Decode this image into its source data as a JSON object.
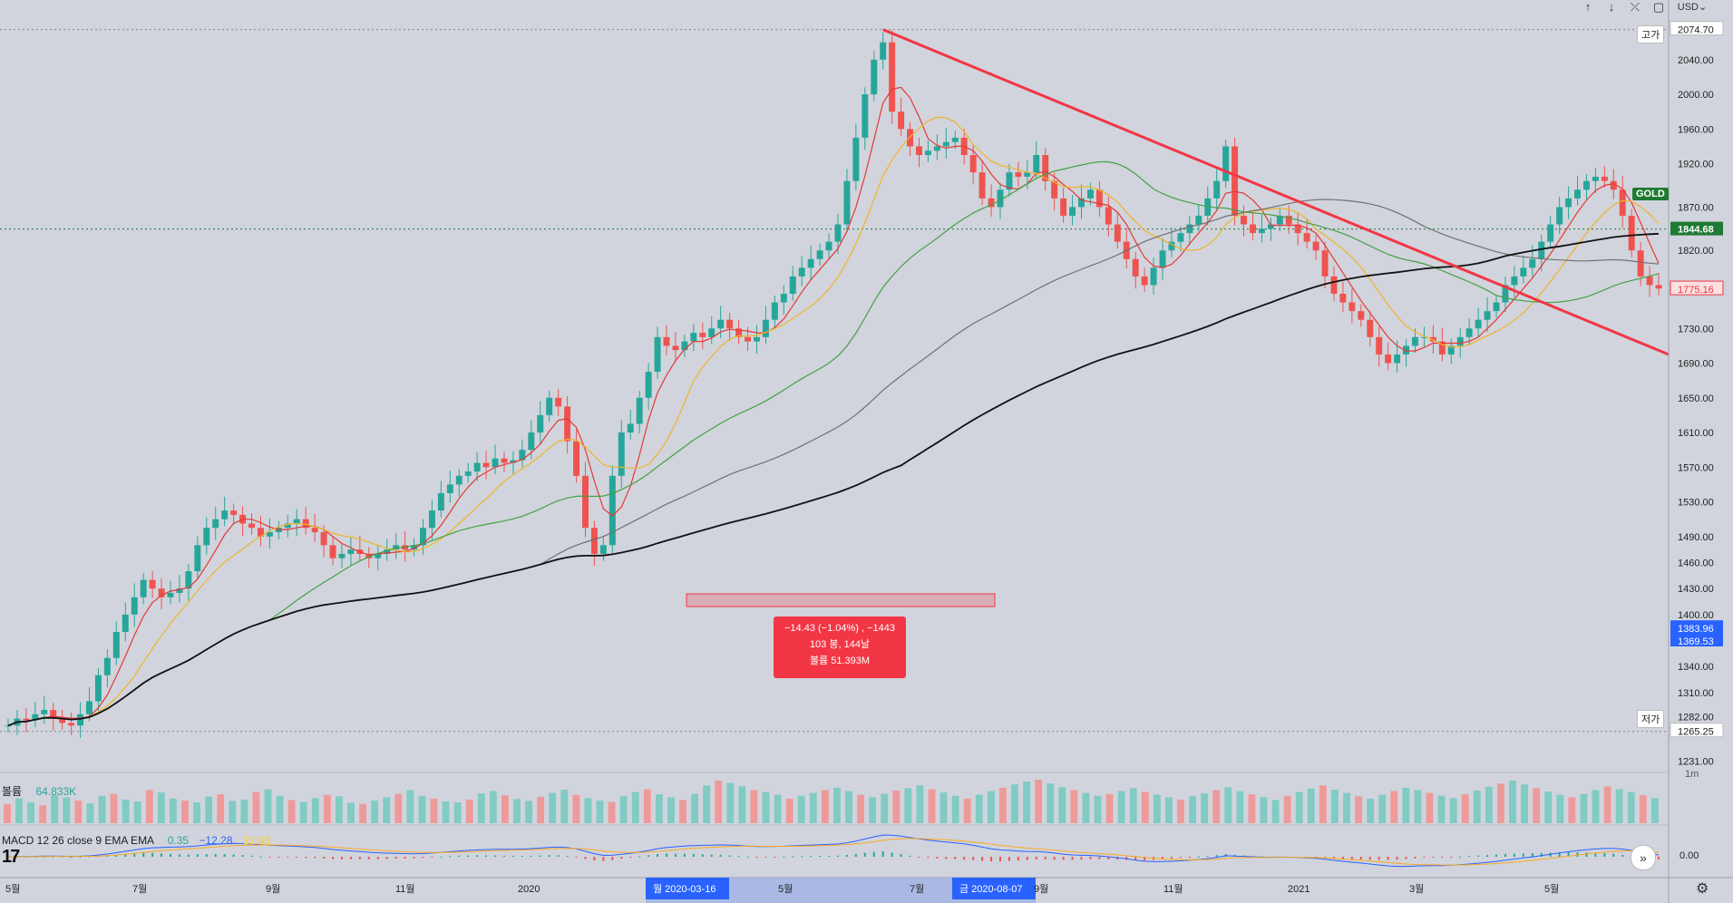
{
  "chart_data": {
    "type": "candlestick",
    "symbol": "GOLD",
    "currency": "USD",
    "x_ticks": [
      "5월",
      "7월",
      "9월",
      "11월",
      "2020",
      "5월",
      "7월",
      "9월",
      "11월",
      "2021",
      "3월",
      "5월"
    ],
    "range_highlight": {
      "start": "월 2020-03-16",
      "end": "금 2020-08-07"
    },
    "y_ticks": [
      2074.7,
      2040.0,
      2000.0,
      1960.0,
      1920.0,
      1870.0,
      1820.0,
      1775.16,
      1730.0,
      1690.0,
      1650.0,
      1610.0,
      1570.0,
      1530.0,
      1490.0,
      1460.0,
      1430.0,
      1400.0,
      1383.96,
      1369.53,
      1340.0,
      1310.0,
      1282.0,
      1265.25,
      1231.0
    ],
    "y_tick_labels": [
      "2074.70",
      "2040.00",
      "2000.00",
      "1960.00",
      "1920.00",
      "1870.00",
      "1820.00",
      "1775.16",
      "1730.00",
      "1690.00",
      "1650.00",
      "1610.00",
      "1570.00",
      "1530.00",
      "1490.00",
      "1460.00",
      "1430.00",
      "1400.00",
      "1383.96",
      "1369.53",
      "1340.00",
      "1310.00",
      "1282.00",
      "1265.25",
      "1231.00"
    ],
    "ylim": [
      1220,
      2090
    ],
    "high": {
      "label": "고가",
      "value": "2074.70"
    },
    "low": {
      "label": "저가",
      "value": "1265.25"
    },
    "last_price": {
      "symbol": "GOLD",
      "value": "1844.68"
    },
    "close_marker": "1775.16",
    "measure_tooltip": {
      "line1": "−14.43 (−1.04%) , −1443",
      "line2": "103 봉, 144날",
      "line3": "볼륨 51.393M"
    },
    "close_series": [
      1272,
      1280,
      1278,
      1285,
      1290,
      1280,
      1275,
      1272,
      1285,
      1300,
      1330,
      1350,
      1380,
      1400,
      1420,
      1440,
      1430,
      1420,
      1425,
      1430,
      1450,
      1480,
      1500,
      1510,
      1520,
      1515,
      1505,
      1500,
      1490,
      1495,
      1500,
      1505,
      1510,
      1500,
      1495,
      1480,
      1465,
      1470,
      1475,
      1470,
      1465,
      1470,
      1475,
      1480,
      1475,
      1480,
      1500,
      1520,
      1540,
      1550,
      1560,
      1565,
      1575,
      1570,
      1580,
      1575,
      1578,
      1590,
      1610,
      1630,
      1650,
      1640,
      1600,
      1560,
      1500,
      1470,
      1480,
      1560,
      1610,
      1620,
      1650,
      1680,
      1720,
      1710,
      1705,
      1715,
      1725,
      1720,
      1730,
      1740,
      1730,
      1720,
      1715,
      1720,
      1740,
      1760,
      1770,
      1790,
      1800,
      1810,
      1820,
      1830,
      1850,
      1900,
      1950,
      2000,
      2040,
      2060,
      1980,
      1960,
      1940,
      1930,
      1935,
      1940,
      1945,
      1950,
      1930,
      1910,
      1880,
      1870,
      1890,
      1910,
      1905,
      1910,
      1930,
      1900,
      1880,
      1860,
      1870,
      1880,
      1890,
      1870,
      1850,
      1830,
      1810,
      1790,
      1780,
      1800,
      1820,
      1830,
      1840,
      1850,
      1860,
      1880,
      1900,
      1940,
      1860,
      1850,
      1840,
      1845,
      1850,
      1860,
      1850,
      1840,
      1830,
      1820,
      1790,
      1770,
      1760,
      1750,
      1740,
      1720,
      1700,
      1690,
      1700,
      1710,
      1720,
      1720,
      1715,
      1700,
      1710,
      1720,
      1730,
      1740,
      1750,
      1760,
      1780,
      1790,
      1800,
      1810,
      1830,
      1850,
      1870,
      1880,
      1890,
      1900,
      1905,
      1900,
      1890,
      1860,
      1820,
      1790,
      1780,
      1776
    ],
    "volume": {
      "label": "볼륨",
      "value": "64.833K",
      "series": [
        40,
        52,
        44,
        38,
        60,
        55,
        48,
        42,
        58,
        62,
        50,
        46,
        70,
        65,
        52,
        48,
        44,
        56,
        61,
        47,
        50,
        66,
        72,
        58,
        49,
        45,
        53,
        60,
        57,
        43,
        41,
        48,
        55,
        62,
        70,
        58,
        52,
        46,
        44,
        50,
        63,
        68,
        59,
        51,
        47,
        56,
        64,
        71,
        60,
        53,
        48,
        45,
        57,
        66,
        72,
        61,
        55,
        49,
        62,
        80,
        90,
        85,
        78,
        70,
        66,
        60,
        52,
        58,
        64,
        70,
        75,
        68,
        60,
        55,
        62,
        69,
        74,
        80,
        72,
        65,
        58,
        52,
        60,
        68,
        75,
        82,
        88,
        92,
        84,
        76,
        70,
        64,
        58,
        62,
        68,
        74,
        66,
        60,
        55,
        50,
        57,
        63,
        70,
        76,
        68,
        61,
        55,
        49,
        58,
        66,
        73,
        80,
        71,
        64,
        57,
        52,
        60,
        68,
        75,
        70,
        64,
        58,
        53,
        61,
        69,
        77,
        84,
        90,
        82,
        74,
        67,
        60,
        55,
        62,
        70,
        78,
        72,
        66,
        59,
        53
      ]
    },
    "macd": {
      "label": "MACD 12 26 close 9 EMA EMA",
      "values": [
        "0.35",
        "−12.28",
        "12.63"
      ]
    },
    "legend_colors": {
      "up": "#26a69a",
      "down": "#ef5350",
      "trend": "#f23645"
    }
  },
  "toolbar": {
    "currency": "USD",
    "arrows": [
      "↑",
      "↓",
      "⤫",
      "▢"
    ]
  },
  "watermark": "17",
  "right_axis_small": "1m",
  "right_axis_zero": "0.00"
}
